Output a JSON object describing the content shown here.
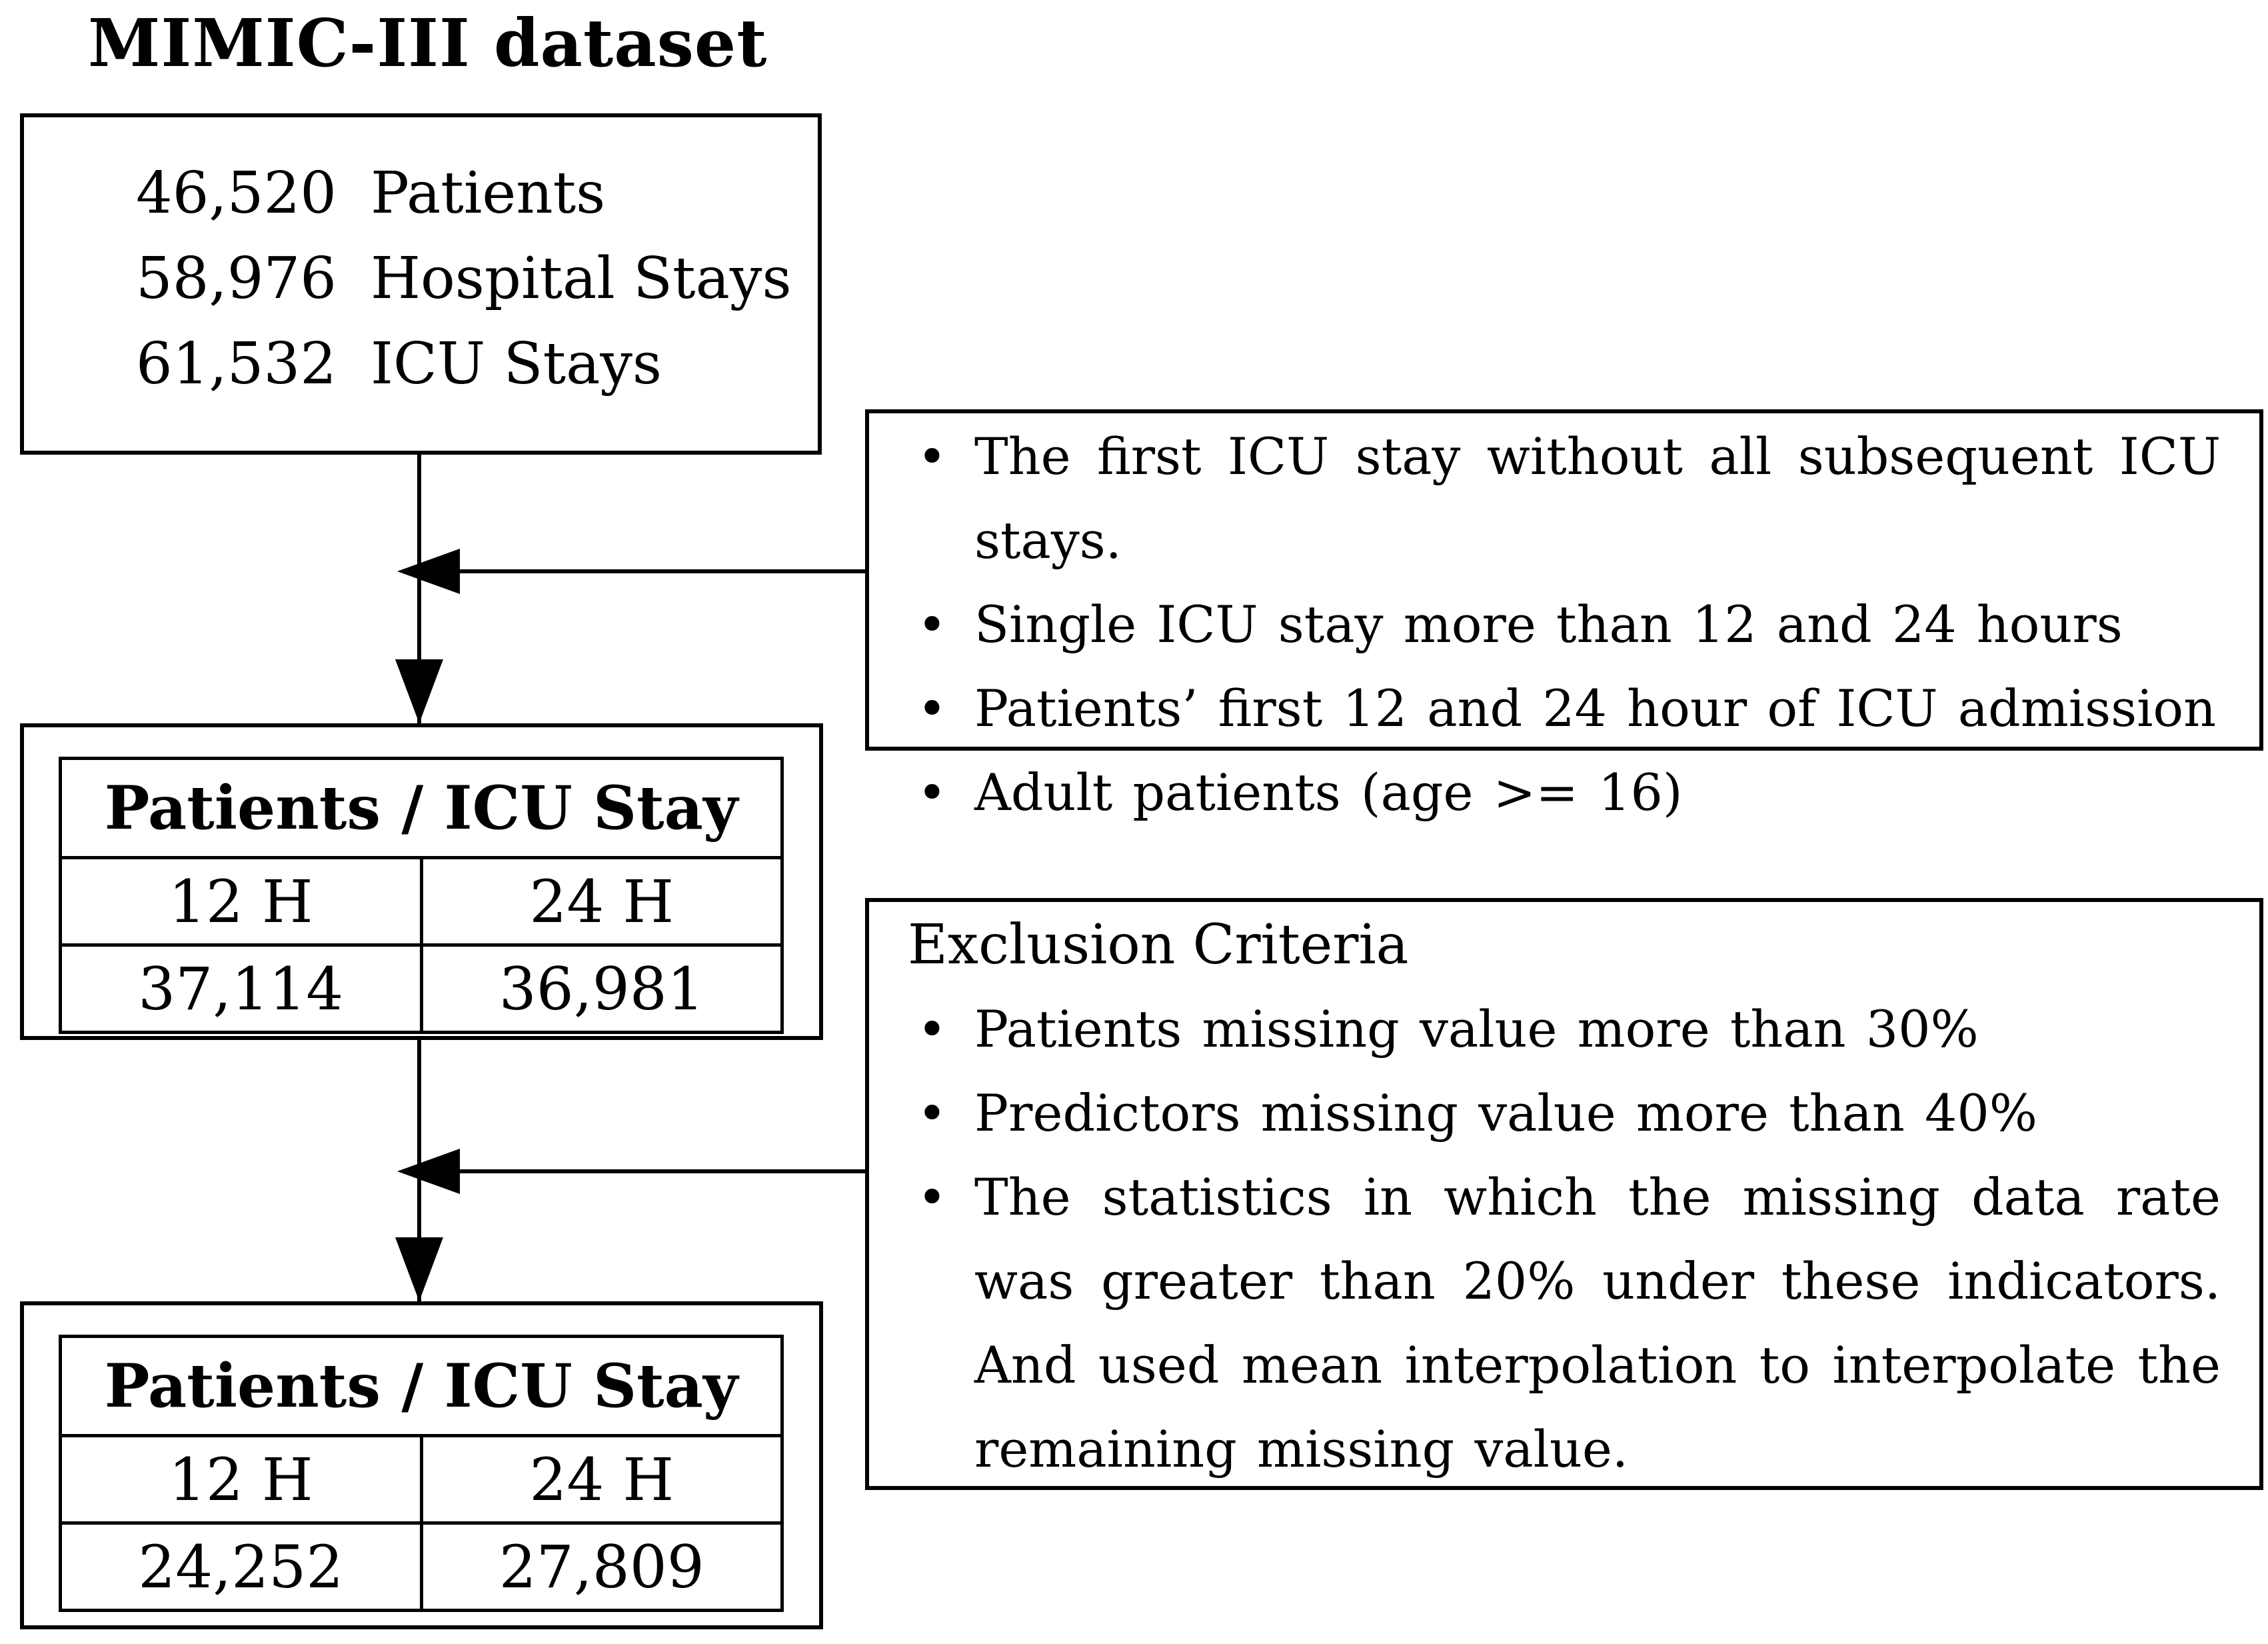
{
  "title": "MIMIC-III dataset",
  "bullet_glyph": "•",
  "colors": {
    "ink": "#000000",
    "background": "#ffffff"
  },
  "source_box": {
    "rows": [
      {
        "value": "46,520",
        "label": "Patients"
      },
      {
        "value": "58,976",
        "label": "Hospital Stays"
      },
      {
        "value": "61,532",
        "label": "ICU Stays"
      }
    ]
  },
  "inclusion_box": {
    "bullets": [
      "The first ICU stay without all subsequent ICU stays.",
      "Single ICU stay more than 12 and 24 hours",
      "Patients’ first 12 and 24 hour of ICU admission",
      "Adult patients (age >= 16)"
    ]
  },
  "table1": {
    "header": "Patients / ICU Stay",
    "columns": [
      "12 H",
      "24 H"
    ],
    "values": [
      "37,114",
      "36,981"
    ]
  },
  "exclusion_box": {
    "title": "Exclusion Criteria",
    "bullets": [
      "Patients missing value more than 30%",
      "Predictors missing value more than 40%",
      "The statistics in which the missing data rate was greater than 20% under these indicators. And used mean interpolation to interpolate the remaining missing value."
    ]
  },
  "table2": {
    "header": "Patients / ICU Stay",
    "columns": [
      "12 H",
      "24 H"
    ],
    "values": [
      "24,252",
      "27,809"
    ]
  }
}
